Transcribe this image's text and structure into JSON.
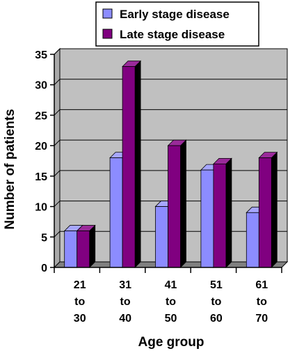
{
  "chart_data": {
    "type": "bar",
    "title": "",
    "xlabel": "Age group",
    "ylabel": "Number of patients",
    "ylim": [
      0,
      35
    ],
    "yticks": [
      0,
      5,
      10,
      15,
      20,
      25,
      30,
      35
    ],
    "categories": [
      [
        "21",
        "to",
        "30"
      ],
      [
        "31",
        "to",
        "40"
      ],
      [
        "41",
        "to",
        "50"
      ],
      [
        "51",
        "to",
        "60"
      ],
      [
        "61",
        "to",
        "70"
      ]
    ],
    "series": [
      {
        "name": "Early stage disease",
        "values": [
          6,
          18,
          10,
          16,
          9
        ],
        "color": "#8c8cff"
      },
      {
        "name": "Late stage disease",
        "values": [
          6,
          33,
          20,
          17,
          18
        ],
        "color": "#800080"
      }
    ],
    "grid": true,
    "legend_position": "top-right",
    "plot_background": "#c0c0c0",
    "style": "3d-bars"
  }
}
